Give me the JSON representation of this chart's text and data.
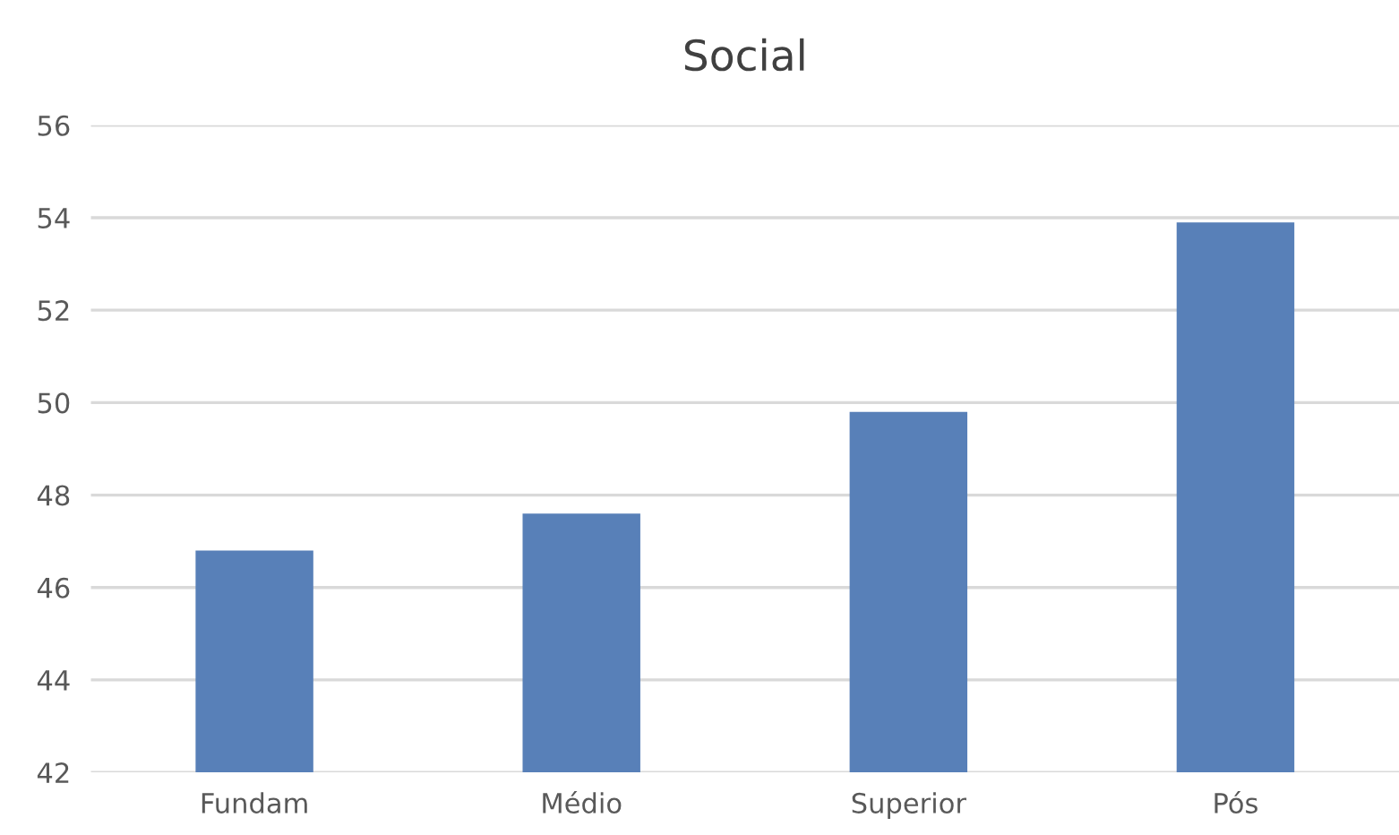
{
  "chart_data": {
    "type": "bar",
    "title": "Social",
    "categories": [
      "Fundam",
      "Médio",
      "Superior",
      "Pós"
    ],
    "values": [
      46.8,
      47.6,
      49.8,
      53.9
    ],
    "color": "#5880b8",
    "ylim": [
      42,
      56
    ],
    "yticks": [
      42,
      44,
      46,
      48,
      50,
      52,
      54,
      56
    ],
    "grid": "y"
  }
}
